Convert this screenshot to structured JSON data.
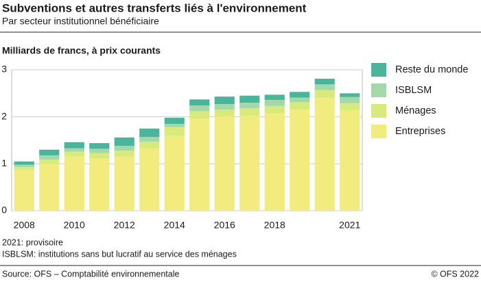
{
  "chart_data": {
    "type": "stacked_bar",
    "title": "Subventions et autres transferts liés à l'environnement",
    "subtitle": "Par secteur institutionnel bénéficiaire",
    "y_label": "Milliards de francs, à prix courants",
    "categories": [
      "2008",
      null,
      "2010",
      null,
      "2012",
      null,
      "2014",
      null,
      "2016",
      null,
      "2018",
      null,
      null,
      "2021"
    ],
    "series": [
      {
        "name": "Entreprises",
        "color": "#f2ec7e",
        "values": [
          0.87,
          1.0,
          1.16,
          1.11,
          1.15,
          1.32,
          1.59,
          1.96,
          2.01,
          2.02,
          2.07,
          2.15,
          2.4,
          2.14
        ]
      },
      {
        "name": "Ménages",
        "color": "#d9ea7c",
        "values": [
          0.06,
          0.09,
          0.1,
          0.12,
          0.13,
          0.15,
          0.19,
          0.16,
          0.14,
          0.16,
          0.16,
          0.16,
          0.17,
          0.15
        ]
      },
      {
        "name": "ISBLSM",
        "color": "#a3d9aa",
        "values": [
          0.05,
          0.09,
          0.07,
          0.09,
          0.1,
          0.1,
          0.07,
          0.12,
          0.12,
          0.12,
          0.13,
          0.1,
          0.12,
          0.13
        ]
      },
      {
        "name": "Reste du monde",
        "color": "#4bb59c",
        "values": [
          0.07,
          0.12,
          0.13,
          0.12,
          0.18,
          0.18,
          0.13,
          0.13,
          0.16,
          0.15,
          0.11,
          0.12,
          0.12,
          0.08
        ]
      }
    ],
    "ylim": [
      0,
      3
    ],
    "yticks": [
      0,
      1,
      2,
      3
    ],
    "grid": true,
    "legend": "right",
    "notes": [
      "2021: provisoire",
      "ISBLSM: institutions sans but lucratif au service des ménages"
    ],
    "source": "Source: OFS – Comptabilité environnementale",
    "copyright": "© OFS 2022"
  }
}
